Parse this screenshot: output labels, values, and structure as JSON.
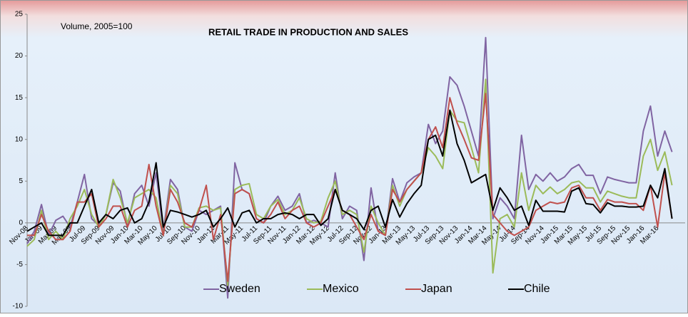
{
  "chart_data": {
    "type": "line",
    "title": "RETAIL TRADE IN PRODUCTION AND SALES",
    "annotation": "Volume, 2005=100",
    "categories": [
      "Nov-08",
      null,
      "Jan-09",
      null,
      "Mar-09",
      null,
      "May-09",
      null,
      "Jul-09",
      null,
      "Sep-09",
      null,
      "Nov-09",
      null,
      "Jan-10",
      null,
      "Mar-10",
      null,
      "May-10",
      null,
      "Jul-10",
      null,
      "Sep-10",
      null,
      "Nov-10",
      null,
      "Jan-11",
      null,
      "Mar-11",
      null,
      "May-11",
      null,
      "Jul-11",
      null,
      "Sep-11",
      null,
      "Nov-11",
      null,
      "Jan-12",
      null,
      "Mar-12",
      null,
      "May-12",
      null,
      "Jul-12",
      null,
      "Sep-12",
      null,
      "Nov-12",
      null,
      "Jan-13",
      null,
      "Mar-13",
      null,
      "May-13",
      null,
      "Jul-13",
      null,
      "Sep-13",
      null,
      "Nov-13",
      null,
      "Jan-14",
      null,
      "Mar-14",
      null,
      "May-14",
      null,
      "Jul-14",
      null,
      "Sep-14",
      null,
      "Nov-14",
      null,
      "Jan-15",
      null,
      "Mar-15",
      null,
      "May-15",
      null,
      "Jul-15",
      null,
      "Sep-15",
      null,
      "Nov-15",
      null,
      "Jan-16",
      null,
      "Mar-16",
      null,
      null
    ],
    "series": [
      {
        "name": "Sweden",
        "color": "#8064a2",
        "values": [
          -2.5,
          -1,
          2.2,
          -1.5,
          0.3,
          0.8,
          -0.5,
          2.5,
          5.8,
          0.5,
          -0.3,
          1,
          4.8,
          3.8,
          -0.3,
          3.5,
          4.5,
          2,
          6,
          -1,
          5.2,
          4,
          -0.5,
          -1,
          1.5,
          1,
          1.5,
          2,
          -9,
          7.2,
          4,
          3.5,
          0.5,
          0,
          2,
          3.2,
          1.5,
          2,
          3.5,
          0,
          0.3,
          0,
          -0.5,
          6,
          0.5,
          2,
          1.5,
          -4.5,
          4.2,
          -1,
          -1.5,
          5.3,
          2.5,
          4.8,
          5.5,
          6,
          11.8,
          9.5,
          11,
          17.5,
          16.5,
          14,
          11,
          8,
          22.2,
          0.5,
          3,
          2,
          0.5,
          10.5,
          4,
          5.8,
          5,
          6,
          5,
          5.5,
          6.5,
          7,
          5.7,
          5.7,
          3.5,
          5.5,
          5.2,
          5,
          4.8,
          4.8,
          11,
          14,
          8,
          11,
          8.5
        ]
      },
      {
        "name": "Mexico",
        "color": "#9bbb59",
        "values": [
          -2.8,
          -2,
          1.5,
          -2,
          -1,
          -2,
          0.5,
          2,
          4,
          1,
          -0.5,
          1,
          5.2,
          3,
          0,
          3,
          3.5,
          4,
          3,
          -1.5,
          4.5,
          3.5,
          -0.5,
          -0.5,
          1.8,
          2,
          1.5,
          1.8,
          -7.5,
          4,
          4.5,
          4.7,
          1,
          0.5,
          2,
          2.8,
          1,
          1.5,
          3,
          0.5,
          0,
          0.2,
          3,
          5,
          1,
          1.5,
          1,
          -3.5,
          2,
          0,
          -1.5,
          4.5,
          2,
          4,
          5,
          6,
          9,
          8,
          6.5,
          13.5,
          12.2,
          12,
          9,
          6,
          17.2,
          -6,
          0.5,
          1,
          -0.5,
          6,
          1.5,
          4.5,
          3.5,
          4.3,
          3.5,
          4,
          4.8,
          5,
          4.2,
          4.2,
          2.5,
          3.8,
          3.5,
          3.2,
          3,
          3,
          8,
          10,
          6.3,
          8.5,
          4.5
        ]
      },
      {
        "name": "Japan",
        "color": "#c0504d",
        "values": [
          -1.5,
          -1.5,
          1,
          -1,
          -2,
          -2,
          -1,
          2.5,
          2.5,
          3.5,
          -0.5,
          0.5,
          2,
          2,
          -0.5,
          1.5,
          2,
          7,
          2,
          -1.5,
          4,
          2.5,
          0,
          -0.5,
          1.5,
          4.5,
          -2,
          1,
          -7,
          3.5,
          4,
          3.5,
          0.5,
          0,
          1,
          2.5,
          0.5,
          1.5,
          2,
          0,
          -0.5,
          0,
          2,
          4,
          1.5,
          1,
          -0.5,
          -2,
          1,
          -1,
          -1.5,
          4,
          2.5,
          4,
          5,
          6,
          10,
          11.5,
          9,
          15,
          12,
          10,
          7.8,
          7.5,
          15.5,
          1,
          0,
          -1,
          -1.5,
          -1,
          -0.5,
          1.5,
          2,
          2.5,
          2.3,
          2.5,
          4.2,
          4.5,
          3,
          3,
          1.5,
          2.8,
          2.5,
          2.5,
          2.3,
          2.3,
          1.5,
          4.5,
          -0.5,
          6,
          0.5
        ]
      },
      {
        "name": "Chile",
        "color": "#000000",
        "values": [
          -1,
          -0.5,
          0,
          -1.5,
          -1.5,
          -1.5,
          0,
          0,
          2,
          4,
          0,
          1,
          0.5,
          1.5,
          1.8,
          0,
          0.5,
          2.5,
          7.2,
          -0.5,
          1.5,
          1.3,
          1,
          0.7,
          1,
          1.5,
          -0.5,
          0.5,
          1.8,
          -0.5,
          1.2,
          1.5,
          0,
          0.5,
          0.5,
          1,
          1.2,
          1,
          0.5,
          1,
          1,
          -0.3,
          0.5,
          4,
          1.5,
          1,
          0.5,
          -0.8,
          1.5,
          2,
          -0.5,
          2.8,
          0.7,
          2.3,
          3.5,
          4.5,
          10,
          10.5,
          8,
          13.5,
          9.5,
          7.5,
          4.8,
          5.3,
          5.8,
          1.5,
          4.2,
          3,
          1.5,
          2,
          -0.3,
          2.7,
          1.4,
          1.4,
          1.4,
          1.3,
          3.8,
          4.2,
          2.3,
          2.2,
          1.2,
          2.4,
          2,
          2,
          1.9,
          1.9,
          2,
          4.5,
          3,
          6.5,
          0.5
        ]
      }
    ],
    "ylim": [
      -10,
      25
    ],
    "yticks": [
      -10,
      -5,
      0,
      5,
      10,
      15,
      20,
      25
    ],
    "legend": "bottom"
  }
}
